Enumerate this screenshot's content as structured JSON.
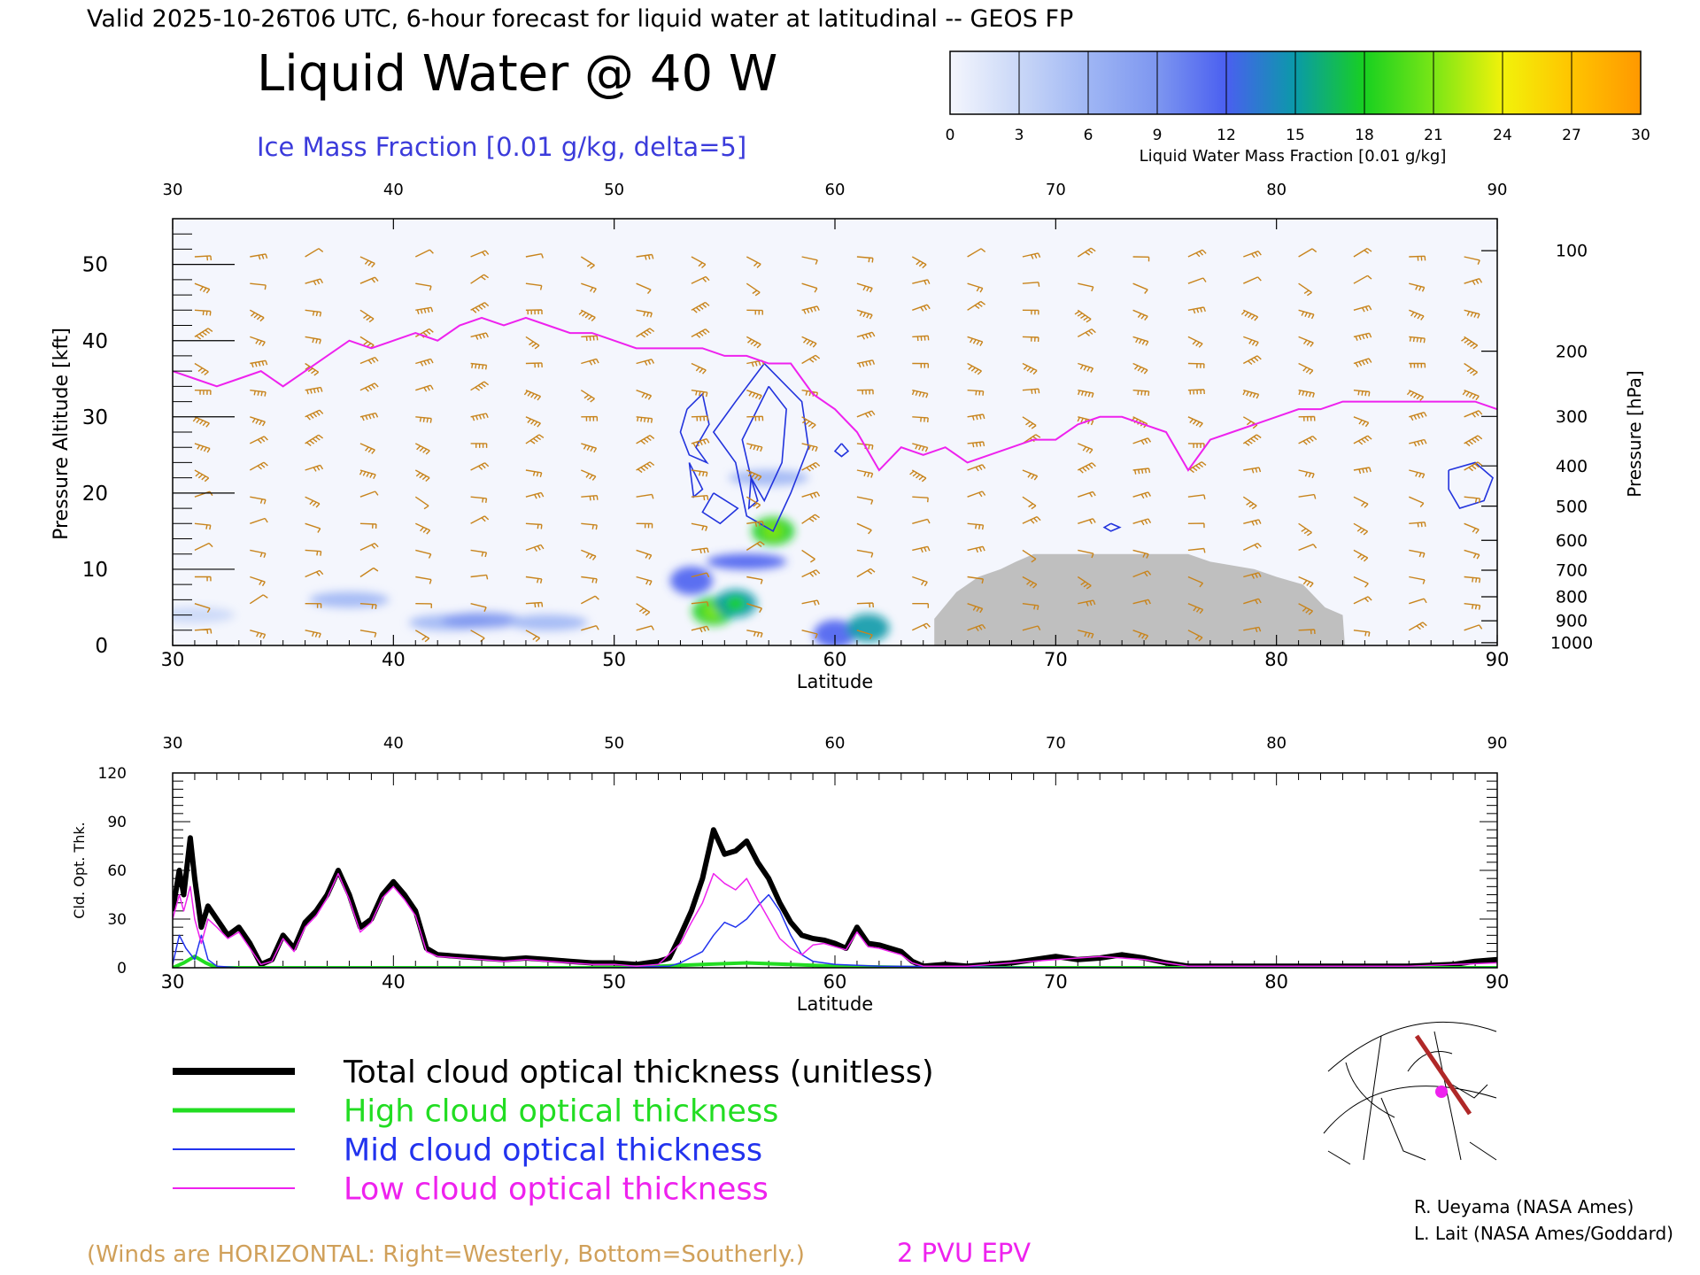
{
  "header": {
    "valid_line": "Valid 2025-10-26T06 UTC, 6-hour forecast for liquid water at latitudinal -- GEOS FP",
    "main_title": "Liquid Water @ 40 W",
    "subtitle": "Ice Mass Fraction [0.01 g/kg, delta=5]"
  },
  "colorbar": {
    "label": "Liquid Water Mass Fraction [0.01 g/kg]",
    "ticks": [
      "0",
      "3",
      "6",
      "9",
      "12",
      "15",
      "18",
      "21",
      "24",
      "27",
      "30"
    ],
    "colors": [
      "#f4f6fd",
      "#c9d7f7",
      "#9fb6f4",
      "#7d96f0",
      "#4a5ff0",
      "#0a9aa8",
      "#18d020",
      "#7ae616",
      "#f2f20a",
      "#ffc400",
      "#ff9800",
      "#ff3c00"
    ]
  },
  "top_panel": {
    "ylabel_left": "Pressure Altitude [kft]",
    "ylabel_right": "Pressure [hPa]",
    "xlabel": "Latitude",
    "x_ticks": [
      "30",
      "40",
      "50",
      "60",
      "70",
      "80",
      "90"
    ],
    "y_ticks": [
      "0",
      "10",
      "20",
      "30",
      "40",
      "50"
    ],
    "p_ticks": [
      "100",
      "200",
      "300",
      "400",
      "500",
      "600",
      "700",
      "800",
      "900",
      "1000"
    ]
  },
  "bottom_panel": {
    "ylabel": "Cld. Opt. Thk.",
    "xlabel": "Latitude",
    "x_ticks": [
      "30",
      "40",
      "50",
      "60",
      "70",
      "80",
      "90"
    ],
    "y_ticks": [
      "0",
      "30",
      "60",
      "90",
      "120"
    ]
  },
  "legend": {
    "items": [
      {
        "label": "Total cloud optical thickness (unitless)",
        "color": "#000000"
      },
      {
        "label": "High cloud optical thickness",
        "color": "#22dd22"
      },
      {
        "label": "Mid cloud optical thickness",
        "color": "#2233ee"
      },
      {
        "label": "Low cloud optical thickness",
        "color": "#ee22ee"
      }
    ]
  },
  "footer": {
    "winds_note": "(Winds are HORIZONTAL: Right=Westerly, Bottom=Southerly.)",
    "epv_label": "2 PVU EPV",
    "credit1": "R. Ueyama (NASA Ames)",
    "credit2": "L. Lait (NASA Ames/Goddard)"
  },
  "colors": {
    "wind": "#c8841c",
    "epv": "#ee22ee",
    "ice": "#2233dd",
    "terrain": "#bfbfbf"
  },
  "chart_data": [
    {
      "type": "heatmap",
      "title": "Liquid Water @ 40 W",
      "xlabel": "Latitude",
      "ylabel": "Pressure Altitude [kft]",
      "xlim": [
        30,
        90
      ],
      "ylim": [
        0,
        56
      ],
      "epv_2pvu_kft": {
        "x": [
          30,
          31,
          32,
          33,
          34,
          35,
          36,
          37,
          38,
          39,
          40,
          41,
          42,
          43,
          44,
          45,
          46,
          47,
          48,
          49,
          50,
          51,
          52,
          53,
          54,
          55,
          56,
          57,
          58,
          59,
          60,
          61,
          62,
          63,
          64,
          65,
          66,
          67,
          68,
          69,
          70,
          71,
          72,
          73,
          74,
          75,
          76,
          77,
          78,
          79,
          80,
          81,
          82,
          83,
          84,
          85,
          86,
          87,
          88,
          89,
          90
        ],
        "y": [
          36,
          35,
          34,
          35,
          36,
          34,
          36,
          38,
          40,
          39,
          40,
          41,
          40,
          42,
          43,
          42,
          43,
          42,
          41,
          41,
          40,
          39,
          39,
          39,
          39,
          38,
          38,
          37,
          37,
          33,
          31,
          28,
          23,
          26,
          25,
          26,
          24,
          25,
          26,
          27,
          27,
          29,
          30,
          30,
          29,
          28,
          23,
          27,
          28,
          29,
          30,
          31,
          31,
          32,
          32,
          32,
          32,
          32,
          32,
          32,
          31
        ]
      },
      "liquid_water_blobs": [
        {
          "lat": 31,
          "kft": 4,
          "value": 3
        },
        {
          "lat": 38,
          "kft": 6,
          "value": 5
        },
        {
          "lat": 42.5,
          "kft": 3,
          "value": 6
        },
        {
          "lat": 44,
          "kft": 3.3,
          "value": 7
        },
        {
          "lat": 47,
          "kft": 3,
          "value": 5
        },
        {
          "lat": 53.5,
          "kft": 8.5,
          "value": 12
        },
        {
          "lat": 54.5,
          "kft": 4.5,
          "value": 16
        },
        {
          "lat": 55.5,
          "kft": 5.5,
          "value": 14
        },
        {
          "lat": 56,
          "kft": 11,
          "value": 10
        },
        {
          "lat": 57.2,
          "kft": 15,
          "value": 17
        },
        {
          "lat": 60,
          "kft": 1.5,
          "value": 12
        },
        {
          "lat": 61.5,
          "kft": 2.3,
          "value": 13
        },
        {
          "lat": 57,
          "kft": 22,
          "value": 5
        }
      ],
      "terrain_kft": {
        "x": [
          64.5,
          65.5,
          66.5,
          67.5,
          68.2,
          69,
          76,
          77,
          78,
          79,
          80,
          81.2,
          82.2,
          83,
          83.1
        ],
        "y": [
          3.5,
          7,
          9,
          10,
          11,
          12,
          12,
          11,
          10.5,
          10,
          9,
          8,
          5,
          4,
          0
        ]
      }
    },
    {
      "type": "line",
      "xlabel": "Latitude",
      "ylabel": "Cld. Opt. Thk.",
      "xlim": [
        30,
        90
      ],
      "ylim": [
        0,
        120
      ],
      "series": [
        {
          "name": "Total cloud optical thickness (unitless)",
          "x": [
            30,
            30.3,
            30.5,
            30.8,
            31,
            31.3,
            31.6,
            32,
            32.5,
            33,
            33.5,
            34,
            34.5,
            35,
            35.5,
            36,
            36.5,
            37,
            37.5,
            38,
            38.5,
            39,
            39.5,
            40,
            40.5,
            41,
            41.5,
            42,
            43,
            44,
            45,
            46,
            47,
            48,
            49,
            50,
            51,
            52,
            52.5,
            53,
            53.5,
            54,
            54.5,
            55,
            55.5,
            56,
            56.5,
            57,
            57.5,
            58,
            58.5,
            59,
            59.5,
            60,
            60.5,
            61,
            61.5,
            62,
            62.5,
            63,
            63.5,
            64,
            65,
            66,
            67,
            68,
            69,
            70,
            71,
            72,
            73,
            74,
            75,
            76,
            78,
            80,
            82,
            84,
            86,
            88,
            89,
            90
          ],
          "y": [
            35,
            60,
            45,
            80,
            55,
            25,
            38,
            30,
            20,
            25,
            15,
            2,
            5,
            20,
            12,
            28,
            35,
            45,
            60,
            45,
            25,
            30,
            45,
            53,
            45,
            35,
            12,
            8,
            7,
            6,
            5,
            6,
            5,
            4,
            3,
            3,
            2,
            4,
            6,
            20,
            35,
            55,
            85,
            70,
            72,
            78,
            65,
            55,
            40,
            28,
            20,
            18,
            17,
            15,
            12,
            25,
            15,
            14,
            12,
            10,
            4,
            1,
            2,
            1,
            2,
            3,
            5,
            7,
            5,
            6,
            8,
            6,
            3,
            1,
            1,
            1,
            1,
            1,
            1,
            2,
            4,
            5
          ]
        },
        {
          "name": "High cloud optical thickness",
          "x": [
            30,
            30.5,
            31,
            31.5,
            32,
            34,
            40,
            50,
            52,
            54,
            56,
            58,
            60,
            64,
            70,
            80,
            90
          ],
          "y": [
            0,
            3,
            7,
            3,
            0,
            0,
            0,
            0,
            1,
            2,
            3,
            2,
            1,
            0,
            0,
            0,
            0
          ]
        },
        {
          "name": "Mid cloud optical thickness",
          "x": [
            30,
            30.3,
            30.6,
            31,
            31.3,
            31.6,
            32,
            33,
            40,
            50,
            52.5,
            53,
            54,
            54.5,
            55,
            55.5,
            56,
            56.5,
            57,
            57.5,
            58,
            58.5,
            59,
            60,
            62,
            70,
            80,
            90
          ],
          "y": [
            2,
            20,
            12,
            5,
            20,
            5,
            1,
            0,
            0,
            0,
            1,
            3,
            10,
            20,
            28,
            25,
            30,
            38,
            45,
            35,
            20,
            8,
            4,
            2,
            1,
            0,
            0,
            0
          ]
        },
        {
          "name": "Low cloud optical thickness",
          "x": [
            30,
            30.3,
            30.5,
            30.8,
            31,
            31.3,
            31.6,
            32,
            32.5,
            33,
            33.5,
            34,
            34.5,
            35,
            35.5,
            36,
            36.5,
            37,
            37.5,
            38,
            38.5,
            39,
            39.5,
            40,
            40.5,
            41,
            41.5,
            42,
            43,
            44,
            45,
            46,
            47,
            48,
            49,
            50,
            51,
            52,
            53,
            53.5,
            54,
            54.5,
            55,
            55.5,
            56,
            56.5,
            57,
            57.5,
            58,
            58.5,
            59,
            59.5,
            60,
            60.5,
            61,
            61.5,
            62,
            62.5,
            63,
            63.5,
            64,
            66,
            70,
            72,
            74,
            76,
            80,
            86,
            88,
            90
          ],
          "y": [
            30,
            45,
            35,
            50,
            30,
            15,
            30,
            25,
            18,
            22,
            12,
            2,
            4,
            18,
            10,
            25,
            32,
            43,
            58,
            42,
            22,
            28,
            43,
            50,
            42,
            32,
            10,
            7,
            6,
            5,
            4,
            5,
            4,
            3,
            2,
            2,
            1,
            2,
            15,
            28,
            40,
            58,
            52,
            48,
            55,
            42,
            30,
            18,
            12,
            8,
            14,
            15,
            13,
            11,
            22,
            13,
            12,
            10,
            8,
            3,
            1,
            1,
            5,
            7,
            5,
            1,
            1,
            1,
            2,
            3
          ]
        }
      ]
    }
  ]
}
